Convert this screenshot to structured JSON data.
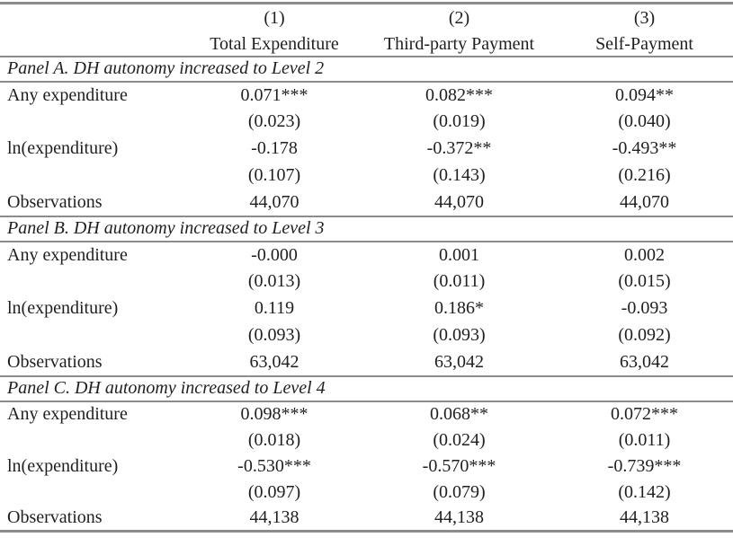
{
  "page": {
    "background_color": "#ffffff",
    "rule_color": "#8c8c8c",
    "text_color": "#1f1f1f"
  },
  "table": {
    "header": {
      "col_numbers": [
        "(1)",
        "(2)",
        "(3)"
      ],
      "col_names": [
        "Total Expenditure",
        "Third-party Payment",
        "Self-Payment"
      ]
    },
    "panels": [
      {
        "title": "Panel A. DH autonomy increased to Level 2",
        "rows": [
          {
            "label": "Any expenditure",
            "values": [
              "0.071***",
              "0.082***",
              "0.094**"
            ]
          },
          {
            "label": "",
            "values": [
              "(0.023)",
              "(0.019)",
              "(0.040)"
            ]
          },
          {
            "label": "ln(expenditure)",
            "values": [
              "-0.178",
              "-0.372**",
              "-0.493**"
            ]
          },
          {
            "label": "",
            "values": [
              "(0.107)",
              "(0.143)",
              "(0.216)"
            ]
          },
          {
            "label": "Observations",
            "values": [
              "44,070",
              "44,070",
              "44,070"
            ]
          }
        ]
      },
      {
        "title": "Panel B. DH autonomy increased to Level 3",
        "rows": [
          {
            "label": "Any expenditure",
            "values": [
              "-0.000",
              "0.001",
              "0.002"
            ]
          },
          {
            "label": "",
            "values": [
              "(0.013)",
              "(0.011)",
              "(0.015)"
            ]
          },
          {
            "label": "ln(expenditure)",
            "values": [
              "0.119",
              "0.186*",
              "-0.093"
            ]
          },
          {
            "label": "",
            "values": [
              "(0.093)",
              "(0.093)",
              "(0.092)"
            ]
          },
          {
            "label": "Observations",
            "values": [
              "63,042",
              "63,042",
              "63,042"
            ]
          }
        ]
      },
      {
        "title": "Panel C. DH autonomy increased to Level 4",
        "rows": [
          {
            "label": "Any expenditure",
            "values": [
              "0.098***",
              "0.068**",
              "0.072***"
            ]
          },
          {
            "label": "",
            "values": [
              "(0.018)",
              "(0.024)",
              "(0.011)"
            ]
          },
          {
            "label": "ln(expenditure)",
            "values": [
              "-0.530***",
              "-0.570***",
              "-0.739***"
            ]
          },
          {
            "label": "",
            "values": [
              "(0.097)",
              "(0.079)",
              "(0.142)"
            ]
          },
          {
            "label": "Observations",
            "values": [
              "44,138",
              "44,138",
              "44,138"
            ]
          }
        ]
      }
    ]
  }
}
